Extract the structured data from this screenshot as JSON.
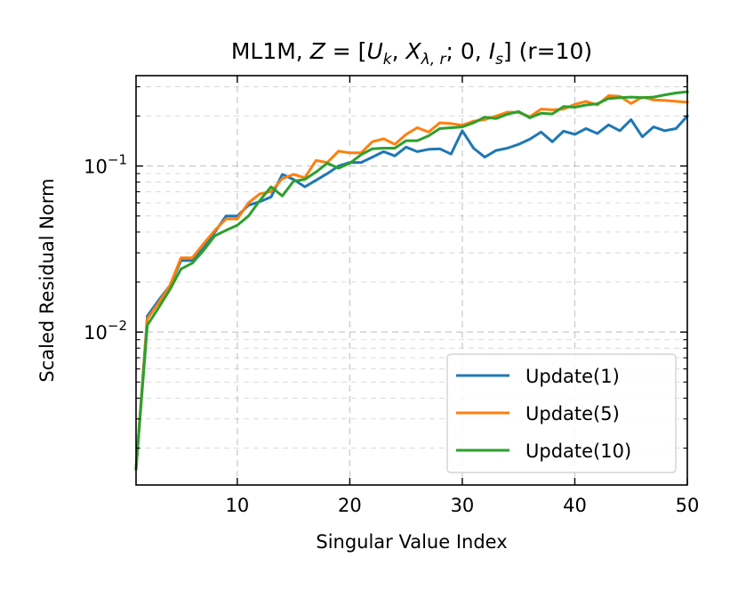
{
  "chart_data": {
    "type": "line",
    "title": {
      "prefix": "ML1M, ",
      "formula": {
        "Z": "Z",
        "eq": " = [",
        "U": "U",
        "U_sub": "k",
        "comma1": ", ",
        "X": "X",
        "X_sub": "λ, r",
        "semi": "; 0, ",
        "I": "I",
        "I_sub": "s",
        "close": "]"
      },
      "suffix": " (r=10)"
    },
    "xlabel": "Singular Value Index",
    "ylabel": "Scaled Residual Norm",
    "xlim": [
      1,
      50
    ],
    "ylim": [
      0.0012,
      0.35
    ],
    "yscale": "log",
    "grid": "on (dashed, major and minor)",
    "legend_position": "lower right",
    "x_ticks": [
      10,
      20,
      30,
      40,
      50
    ],
    "x_tick_labels": [
      "10",
      "20",
      "30",
      "40",
      "50"
    ],
    "y_ticks": [
      {
        "value": 0.01,
        "base": "10",
        "exp": "−2"
      },
      {
        "value": 0.1,
        "base": "10",
        "exp": "−1"
      }
    ],
    "x": [
      1,
      2,
      3,
      4,
      5,
      6,
      7,
      8,
      9,
      10,
      11,
      12,
      13,
      14,
      15,
      16,
      17,
      18,
      19,
      20,
      21,
      22,
      23,
      24,
      25,
      26,
      27,
      28,
      29,
      30,
      31,
      32,
      33,
      34,
      35,
      36,
      37,
      38,
      39,
      40,
      41,
      42,
      43,
      44,
      45,
      46,
      47,
      48,
      49,
      50
    ],
    "series": [
      {
        "name": "Update(1)",
        "color": "#1f77b4",
        "values": [
          0.0015,
          0.0125,
          0.0155,
          0.019,
          0.027,
          0.027,
          0.032,
          0.04,
          0.05,
          0.05,
          0.058,
          0.061,
          0.065,
          0.089,
          0.083,
          0.075,
          0.082,
          0.09,
          0.1,
          0.105,
          0.105,
          0.113,
          0.122,
          0.115,
          0.13,
          0.122,
          0.126,
          0.127,
          0.118,
          0.163,
          0.128,
          0.113,
          0.124,
          0.128,
          0.135,
          0.145,
          0.16,
          0.14,
          0.162,
          0.155,
          0.168,
          0.157,
          0.177,
          0.163,
          0.19,
          0.15,
          0.172,
          0.163,
          0.168,
          0.2
        ]
      },
      {
        "name": "Update(5)",
        "color": "#ff7f0e",
        "values": [
          0.0015,
          0.012,
          0.015,
          0.019,
          0.028,
          0.028,
          0.034,
          0.041,
          0.048,
          0.048,
          0.06,
          0.068,
          0.07,
          0.084,
          0.089,
          0.085,
          0.108,
          0.105,
          0.123,
          0.12,
          0.12,
          0.14,
          0.146,
          0.135,
          0.155,
          0.17,
          0.16,
          0.182,
          0.18,
          0.176,
          0.186,
          0.19,
          0.2,
          0.211,
          0.21,
          0.198,
          0.22,
          0.218,
          0.22,
          0.235,
          0.245,
          0.233,
          0.265,
          0.263,
          0.238,
          0.26,
          0.25,
          0.248,
          0.245,
          0.242
        ]
      },
      {
        "name": "Update(10)",
        "color": "#2ca02c",
        "values": [
          0.0015,
          0.011,
          0.014,
          0.018,
          0.024,
          0.026,
          0.031,
          0.038,
          0.041,
          0.044,
          0.05,
          0.062,
          0.075,
          0.066,
          0.081,
          0.083,
          0.092,
          0.104,
          0.097,
          0.104,
          0.117,
          0.127,
          0.128,
          0.128,
          0.142,
          0.142,
          0.152,
          0.168,
          0.17,
          0.172,
          0.182,
          0.197,
          0.193,
          0.205,
          0.213,
          0.195,
          0.208,
          0.206,
          0.228,
          0.226,
          0.233,
          0.237,
          0.255,
          0.258,
          0.26,
          0.258,
          0.26,
          0.268,
          0.275,
          0.28
        ]
      }
    ]
  }
}
